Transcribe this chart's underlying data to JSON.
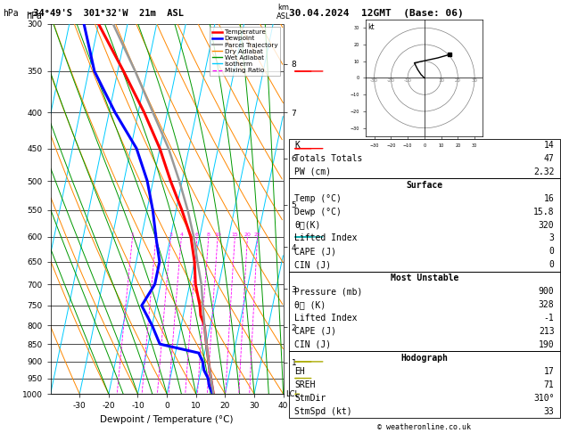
{
  "title_left": "-34°49'S  301°32'W  21m  ASL",
  "title_right": "30.04.2024  12GMT  (Base: 06)",
  "xlabel": "Dewpoint / Temperature (°C)",
  "pressure_ticks": [
    300,
    350,
    400,
    450,
    500,
    550,
    600,
    650,
    700,
    750,
    800,
    850,
    900,
    950,
    1000
  ],
  "temp_ticks": [
    -30,
    -20,
    -10,
    0,
    10,
    20,
    30,
    40
  ],
  "skew_factor": 22,
  "isotherm_color": "#00ccff",
  "isotherm_linewidth": 0.7,
  "dry_adiabat_color": "#ff8800",
  "dry_adiabat_linewidth": 0.7,
  "wet_adiabat_color": "#009900",
  "wet_adiabat_linewidth": 0.7,
  "mixing_ratio_color": "#ff00ff",
  "mixing_ratio_linewidth": 0.6,
  "mixing_ratio_values": [
    1,
    2,
    3,
    4,
    6,
    8,
    10,
    15,
    20,
    25
  ],
  "temperature_profile": {
    "pressure": [
      1000,
      975,
      950,
      925,
      900,
      875,
      850,
      825,
      800,
      775,
      750,
      700,
      650,
      600,
      550,
      500,
      450,
      400,
      350,
      300
    ],
    "temp": [
      16,
      15,
      14,
      13,
      12,
      11,
      10,
      9,
      8,
      6,
      5,
      2,
      0,
      -3,
      -8,
      -14,
      -20,
      -28,
      -38,
      -50
    ],
    "color": "#ff0000",
    "linewidth": 2.2
  },
  "dewpoint_profile": {
    "pressure": [
      1000,
      975,
      950,
      925,
      900,
      875,
      850,
      800,
      750,
      700,
      650,
      600,
      550,
      500,
      450,
      400,
      350,
      300
    ],
    "temp": [
      15.8,
      14,
      13,
      11,
      10,
      8,
      -6,
      -10,
      -15,
      -12,
      -12,
      -15,
      -18,
      -22,
      -28,
      -38,
      -48,
      -55
    ],
    "color": "#0000ff",
    "linewidth": 2.2
  },
  "parcel_profile": {
    "pressure": [
      1000,
      950,
      900,
      850,
      800,
      750,
      700,
      650,
      600,
      550,
      500,
      450,
      400,
      350,
      300
    ],
    "temp": [
      16,
      14,
      12,
      10,
      8,
      6,
      4,
      1,
      -2,
      -6,
      -11,
      -17,
      -25,
      -34,
      -45
    ],
    "color": "#999999",
    "linewidth": 1.8
  },
  "km_ticks": [
    1,
    2,
    3,
    4,
    5,
    6,
    7,
    8
  ],
  "km_pressures": [
    902,
    805,
    710,
    620,
    540,
    465,
    400,
    342
  ],
  "stats": {
    "K": 14,
    "Totals_Totals": 47,
    "PW_cm": "2.32",
    "Surface_Temp": 16,
    "Surface_Dewp": "15.8",
    "Surface_theta_e": 320,
    "Surface_LI": 3,
    "Surface_CAPE": 0,
    "Surface_CIN": 0,
    "MU_Pressure": 900,
    "MU_theta_e": 328,
    "MU_LI": -1,
    "MU_CAPE": 213,
    "MU_CIN": 190,
    "EH": 17,
    "SREH": 71,
    "StmDir": "310°",
    "StmSpd": 33
  }
}
